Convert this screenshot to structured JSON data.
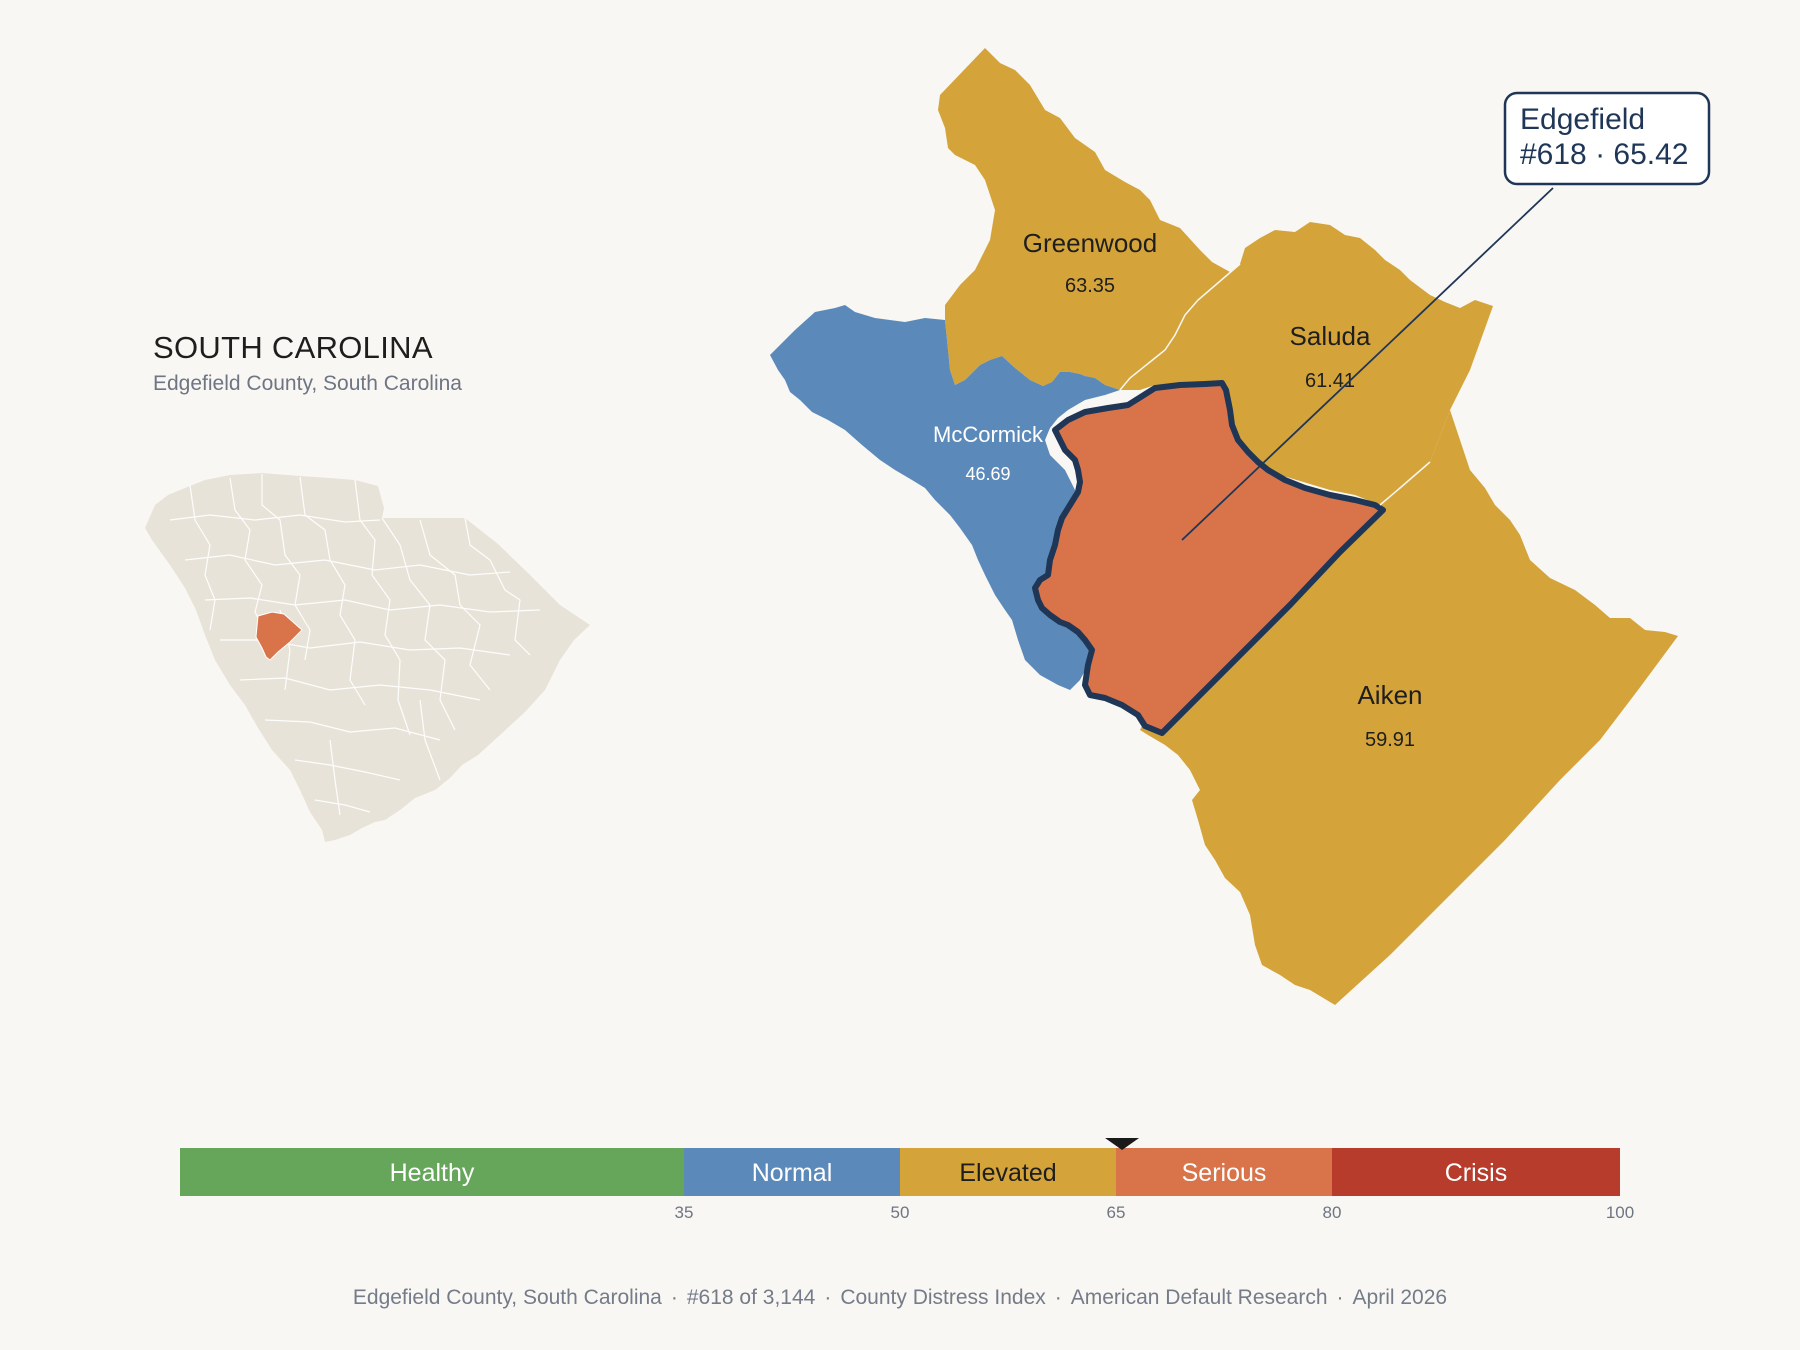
{
  "locator": {
    "title": "SOUTH CAROLINA",
    "subtitle": "Edgefield County, South Carolina",
    "base_color": "#e8e3d8",
    "highlight_color": "#d9744a"
  },
  "map": {
    "counties": [
      {
        "name": "Greenwood",
        "value": "63.35",
        "color": "#d4a43a",
        "text_color": "#1e1e1e"
      },
      {
        "name": "Saluda",
        "value": "61.41",
        "color": "#d4a43a",
        "text_color": "#1e1e1e"
      },
      {
        "name": "McCormick",
        "value": "46.69",
        "color": "#5b8aba",
        "text_color": "#ffffff"
      },
      {
        "name": "Aiken",
        "value": "59.91",
        "color": "#d4a43a",
        "text_color": "#1e1e1e"
      },
      {
        "name": "Edgefield",
        "value": "65.42",
        "color": "#d9744a",
        "text_color": "#1e1e1e"
      }
    ],
    "focus_outline_color": "#1f3657",
    "callout": {
      "line1": "Edgefield",
      "line2": "#618 · 65.42"
    }
  },
  "scale": {
    "min": 0,
    "max": 100,
    "marker_value": 65.42,
    "bands": [
      {
        "label": "Healthy",
        "from": 0,
        "to": 35,
        "color": "#66a65a",
        "text_color": "#ffffff"
      },
      {
        "label": "Normal",
        "from": 35,
        "to": 50,
        "color": "#5b8aba",
        "text_color": "#ffffff"
      },
      {
        "label": "Elevated",
        "from": 50,
        "to": 65,
        "color": "#d4a43a",
        "text_color": "#1e1e1e"
      },
      {
        "label": "Serious",
        "from": 65,
        "to": 80,
        "color": "#d9744a",
        "text_color": "#ffffff"
      },
      {
        "label": "Crisis",
        "from": 80,
        "to": 100,
        "color": "#b83c2c",
        "text_color": "#ffffff"
      }
    ],
    "ticks": [
      "35",
      "50",
      "65",
      "80",
      "100"
    ]
  },
  "footer": {
    "county": "Edgefield County, South Carolina",
    "rank": "#618 of 3,144",
    "index": "County Distress Index",
    "source": "American Default Research",
    "date": "April 2026"
  }
}
